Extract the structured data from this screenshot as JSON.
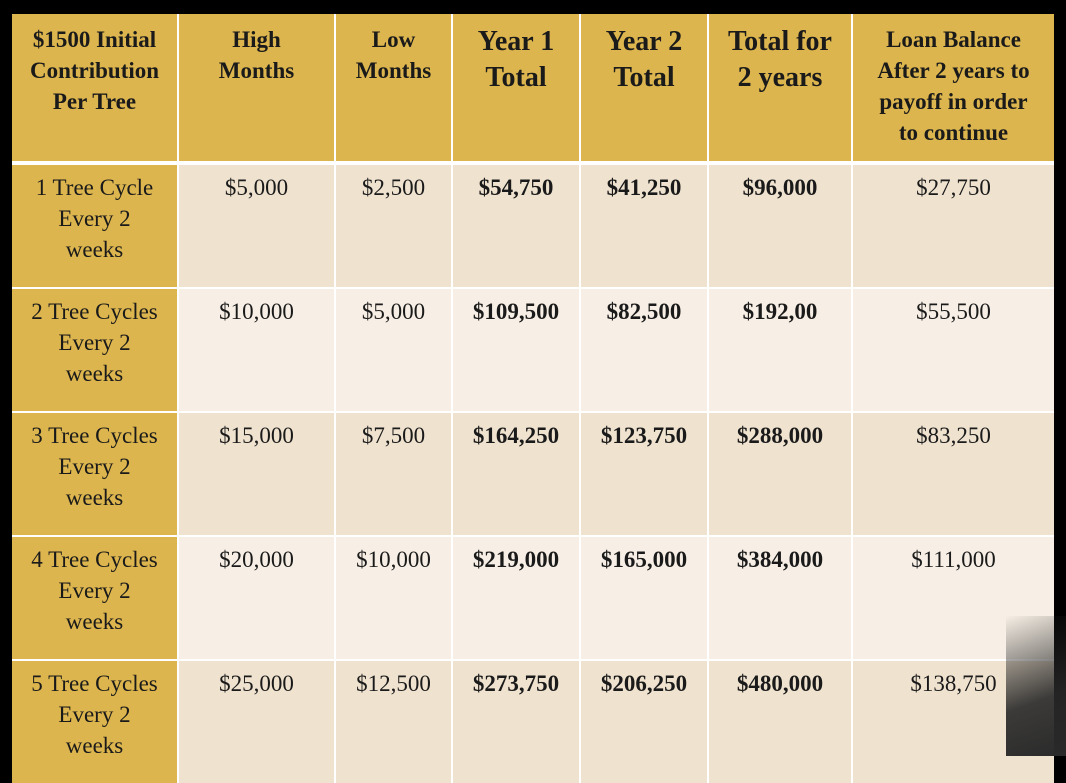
{
  "table": {
    "headers": [
      {
        "lines": [
          "$1500 Initial",
          "Contribution",
          "Per Tree"
        ],
        "size": "small"
      },
      {
        "lines": [
          "High",
          "Months"
        ],
        "size": "small"
      },
      {
        "lines": [
          "Low",
          "Months"
        ],
        "size": "small"
      },
      {
        "lines": [
          "Year 1",
          "Total"
        ],
        "size": "large"
      },
      {
        "lines": [
          "Year 2",
          "Total"
        ],
        "size": "large"
      },
      {
        "lines": [
          "Total for",
          "2 years"
        ],
        "size": "large"
      },
      {
        "lines": [
          "Loan Balance",
          "After 2 years to",
          "payoff in order",
          "to continue"
        ],
        "size": "small"
      }
    ],
    "rows": [
      {
        "label": [
          "1 Tree Cycle",
          "Every 2",
          "weeks"
        ],
        "high": "$5,000",
        "low": "$2,500",
        "year1": "$54,750",
        "year2": "$41,250",
        "total": "$96,000",
        "balance": "$27,750"
      },
      {
        "label": [
          "2 Tree Cycles",
          "Every 2",
          "weeks"
        ],
        "high": "$10,000",
        "low": "$5,000",
        "year1": "$109,500",
        "year2": "$82,500",
        "total": "$192,00",
        "balance": "$55,500"
      },
      {
        "label": [
          "3 Tree Cycles",
          "Every 2",
          "weeks"
        ],
        "high": "$15,000",
        "low": "$7,500",
        "year1": "$164,250",
        "year2": "$123,750",
        "total": "$288,000",
        "balance": "$83,250"
      },
      {
        "label": [
          "4 Tree Cycles",
          "Every 2",
          "weeks"
        ],
        "high": "$20,000",
        "low": "$10,000",
        "year1": "$219,000",
        "year2": "$165,000",
        "total": "$384,000",
        "balance": "$111,000"
      },
      {
        "label": [
          "5 Tree Cycles",
          "Every 2",
          "weeks"
        ],
        "high": "$25,000",
        "low": "$12,500",
        "year1": "$273,750",
        "year2": "$206,250",
        "total": "$480,000",
        "balance": "$138,750"
      }
    ]
  },
  "colors": {
    "header_gold": "#dcb54e",
    "row_odd": "#efe2cf",
    "row_even": "#f7efe5",
    "frame": "#000000"
  }
}
